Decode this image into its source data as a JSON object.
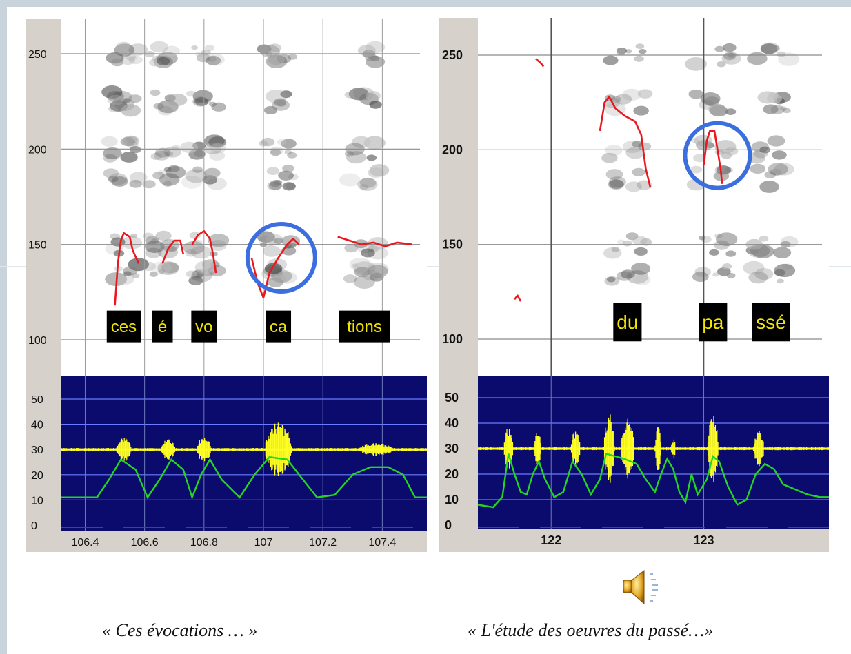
{
  "colors": {
    "frame": "#c9d3dc",
    "axis_panel": "#d6d1ca",
    "spectrogram_bg": "#ffffff",
    "pitch_curve": "#e8181e",
    "highlight_circle": "#3b6fe0",
    "label_box": "#000000",
    "label_text": "#f2e600",
    "energy_bg": "#0b0b6e",
    "waveform": "#ffff22",
    "intensity_curve": "#22d622",
    "energy_gridline": "#6c7cff"
  },
  "icons": [
    "speaker-icon"
  ],
  "captions": {
    "left": "« Ces évocations … »",
    "right": "« L'étude des oeuvres du passé…»"
  },
  "chart_data": [
    {
      "type": "line",
      "title": "",
      "xlabel": "",
      "ylabel": "",
      "pitch_axis": {
        "ylim": [
          95,
          265
        ],
        "ticks": [
          100,
          150,
          200,
          250
        ],
        "tick_labels": [
          "100",
          "150",
          "200",
          "250"
        ]
      },
      "energy_axis": {
        "ylim": [
          0,
          60
        ],
        "ticks": [
          0,
          10,
          20,
          30,
          40,
          50
        ],
        "tick_labels": [
          "0",
          "10",
          "20",
          "30",
          "40",
          "50"
        ]
      },
      "xlim": [
        106.32,
        107.55
      ],
      "x_ticks": [
        106.4,
        106.6,
        106.8,
        107,
        107.2,
        107.4
      ],
      "x_tick_labels": [
        "106.4",
        "106.6",
        "106.8",
        "107",
        "107.2",
        "107.4"
      ],
      "syllables": [
        {
          "label": "ces",
          "x": 106.53
        },
        {
          "label": "é",
          "x": 106.66
        },
        {
          "label": "vo",
          "x": 106.8
        },
        {
          "label": "ca",
          "x": 107.05
        },
        {
          "label": "tions",
          "x": 107.34
        }
      ],
      "highlight": {
        "x": 107.06,
        "y": 143
      },
      "series": [
        {
          "role": "pitch",
          "segments": [
            [
              [
                106.5,
                118
              ],
              [
                106.51,
                140
              ],
              [
                106.52,
                152
              ],
              [
                106.53,
                156
              ],
              [
                106.55,
                154
              ],
              [
                106.56,
                147
              ],
              [
                106.58,
                140
              ]
            ],
            [
              [
                106.66,
                140
              ],
              [
                106.68,
                148
              ],
              [
                106.7,
                152
              ],
              [
                106.72,
                152
              ],
              [
                106.73,
                145
              ]
            ],
            [
              [
                106.76,
                150
              ],
              [
                106.78,
                155
              ],
              [
                106.8,
                157
              ],
              [
                106.82,
                153
              ],
              [
                106.83,
                145
              ],
              [
                106.84,
                135
              ]
            ],
            [
              [
                106.96,
                143
              ],
              [
                106.98,
                130
              ],
              [
                107.0,
                122
              ],
              [
                107.02,
                135
              ],
              [
                107.05,
                143
              ],
              [
                107.08,
                150
              ],
              [
                107.1,
                153
              ],
              [
                107.12,
                150
              ]
            ],
            [
              [
                107.25,
                154
              ],
              [
                107.29,
                152
              ],
              [
                107.33,
                150
              ],
              [
                107.37,
                151
              ],
              [
                107.41,
                149
              ],
              [
                107.45,
                151
              ],
              [
                107.5,
                150
              ]
            ]
          ]
        },
        {
          "role": "intensity",
          "points": [
            [
              106.32,
              11
            ],
            [
              106.44,
              11
            ],
            [
              106.48,
              18
            ],
            [
              106.52,
              26
            ],
            [
              106.57,
              22
            ],
            [
              106.61,
              11
            ],
            [
              106.65,
              18
            ],
            [
              106.69,
              26
            ],
            [
              106.73,
              22
            ],
            [
              106.76,
              11
            ],
            [
              106.79,
              20
            ],
            [
              106.82,
              26
            ],
            [
              106.86,
              18
            ],
            [
              106.92,
              11
            ],
            [
              106.97,
              20
            ],
            [
              107.02,
              27
            ],
            [
              107.08,
              26
            ],
            [
              107.12,
              20
            ],
            [
              107.18,
              11
            ],
            [
              107.24,
              12
            ],
            [
              107.3,
              20
            ],
            [
              107.36,
              23
            ],
            [
              107.42,
              23
            ],
            [
              107.47,
              20
            ],
            [
              107.51,
              11
            ],
            [
              107.55,
              11
            ]
          ]
        },
        {
          "role": "waveform-envelope",
          "baseline": 30,
          "bursts": [
            {
              "x": 106.53,
              "amp": 5,
              "w": 0.05
            },
            {
              "x": 106.68,
              "amp": 4,
              "w": 0.05
            },
            {
              "x": 106.8,
              "amp": 5,
              "w": 0.05
            },
            {
              "x": 107.05,
              "amp": 11,
              "w": 0.09
            },
            {
              "x": 107.38,
              "amp": 2.5,
              "w": 0.12
            }
          ]
        }
      ]
    },
    {
      "type": "line",
      "title": "",
      "xlabel": "",
      "ylabel": "",
      "pitch_axis": {
        "ylim": [
          95,
          265
        ],
        "ticks": [
          100,
          150,
          200,
          250
        ],
        "tick_labels": [
          "100",
          "150",
          "200",
          "250"
        ]
      },
      "energy_axis": {
        "ylim": [
          0,
          60
        ],
        "ticks": [
          0,
          10,
          20,
          30,
          40,
          50
        ],
        "tick_labels": [
          "0",
          "10",
          "20",
          "30",
          "40",
          "50"
        ]
      },
      "xlim": [
        121.52,
        123.82
      ],
      "x_ticks": [
        122,
        123
      ],
      "x_tick_labels": [
        "122",
        "123"
      ],
      "syllables": [
        {
          "label": "du",
          "x": 122.5
        },
        {
          "label": "pa",
          "x": 123.06
        },
        {
          "label": "ssé",
          "x": 123.44
        }
      ],
      "highlight": {
        "x": 123.09,
        "y": 197
      },
      "series": [
        {
          "role": "pitch",
          "segments": [
            [
              [
                121.9,
                248
              ],
              [
                121.93,
                246
              ],
              [
                121.95,
                244
              ]
            ],
            [
              [
                121.76,
                121
              ],
              [
                121.78,
                123
              ],
              [
                121.8,
                120
              ]
            ],
            [
              [
                122.32,
                210
              ],
              [
                122.35,
                225
              ],
              [
                122.38,
                228
              ],
              [
                122.42,
                222
              ],
              [
                122.48,
                218
              ],
              [
                122.55,
                215
              ],
              [
                122.59,
                208
              ],
              [
                122.62,
                190
              ],
              [
                122.65,
                180
              ]
            ],
            [
              [
                123.0,
                192
              ],
              [
                123.02,
                205
              ],
              [
                123.04,
                210
              ],
              [
                123.07,
                210
              ],
              [
                123.09,
                200
              ],
              [
                123.11,
                190
              ],
              [
                123.12,
                182
              ]
            ]
          ]
        },
        {
          "role": "intensity",
          "points": [
            [
              121.52,
              8
            ],
            [
              121.62,
              7
            ],
            [
              121.68,
              11
            ],
            [
              121.72,
              28
            ],
            [
              121.76,
              20
            ],
            [
              121.8,
              13
            ],
            [
              121.84,
              12
            ],
            [
              121.88,
              20
            ],
            [
              121.92,
              25
            ],
            [
              121.96,
              18
            ],
            [
              122.02,
              11
            ],
            [
              122.08,
              13
            ],
            [
              122.14,
              25
            ],
            [
              122.2,
              20
            ],
            [
              122.26,
              12
            ],
            [
              122.32,
              18
            ],
            [
              122.36,
              28
            ],
            [
              122.42,
              27
            ],
            [
              122.48,
              26
            ],
            [
              122.56,
              24
            ],
            [
              122.62,
              18
            ],
            [
              122.68,
              13
            ],
            [
              122.72,
              20
            ],
            [
              122.76,
              26
            ],
            [
              122.8,
              22
            ],
            [
              122.84,
              13
            ],
            [
              122.88,
              9
            ],
            [
              122.92,
              20
            ],
            [
              122.96,
              12
            ],
            [
              123.02,
              18
            ],
            [
              123.06,
              27
            ],
            [
              123.1,
              25
            ],
            [
              123.16,
              15
            ],
            [
              123.22,
              8
            ],
            [
              123.28,
              10
            ],
            [
              123.34,
              20
            ],
            [
              123.4,
              24
            ],
            [
              123.46,
              22
            ],
            [
              123.52,
              16
            ],
            [
              123.6,
              14
            ],
            [
              123.68,
              12
            ],
            [
              123.76,
              11
            ],
            [
              123.82,
              11
            ]
          ]
        },
        {
          "role": "waveform-envelope",
          "baseline": 30,
          "bursts": [
            {
              "x": 121.72,
              "amp": 9,
              "w": 0.06
            },
            {
              "x": 121.91,
              "amp": 7,
              "w": 0.05
            },
            {
              "x": 122.16,
              "amp": 7,
              "w": 0.06
            },
            {
              "x": 122.38,
              "amp": 14,
              "w": 0.07
            },
            {
              "x": 122.5,
              "amp": 12,
              "w": 0.09
            },
            {
              "x": 122.7,
              "amp": 9,
              "w": 0.04
            },
            {
              "x": 122.8,
              "amp": 4,
              "w": 0.03
            },
            {
              "x": 123.06,
              "amp": 14,
              "w": 0.07
            },
            {
              "x": 123.36,
              "amp": 7,
              "w": 0.07
            }
          ]
        }
      ]
    }
  ]
}
